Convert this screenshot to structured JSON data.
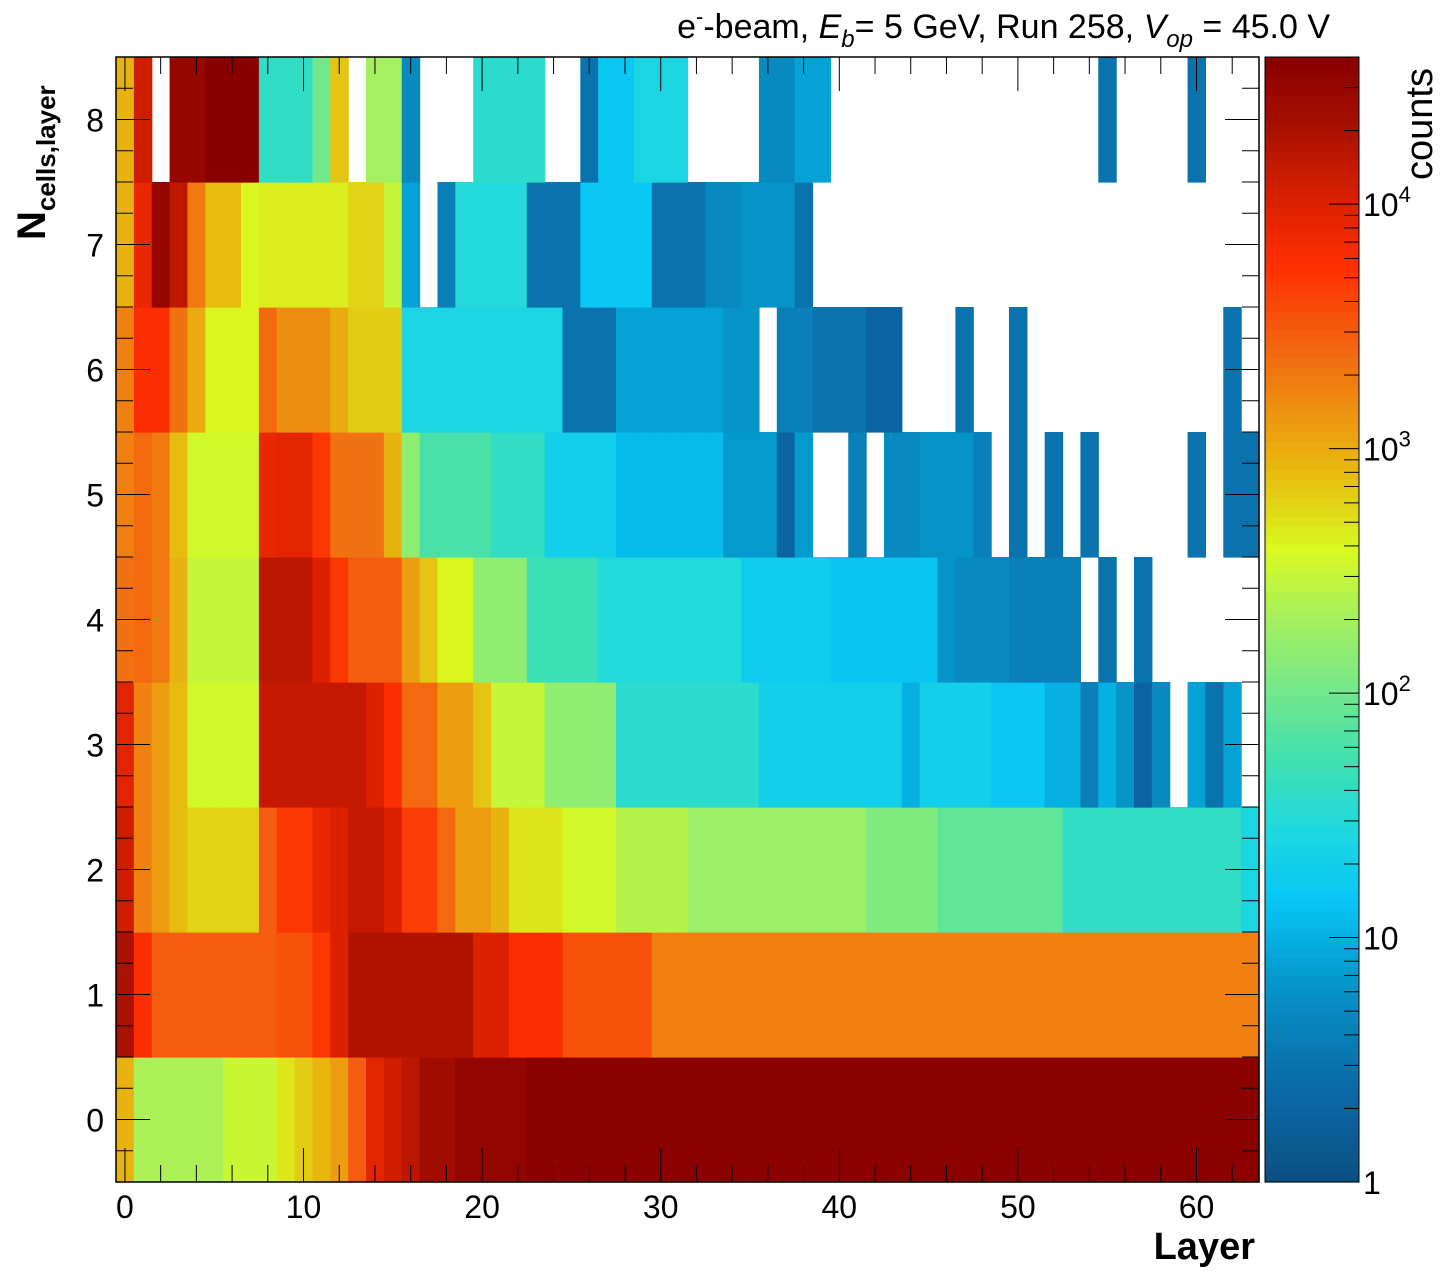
{
  "chart_data": {
    "type": "heatmap",
    "title": {
      "pre": "e",
      "sup": "-",
      "mid1": "-beam, ",
      "e_var": "E",
      "e_sub": "b",
      "mid2": "= 5 GeV, Run 258, ",
      "v_var": "V",
      "v_sub": "op",
      "post": " = 45.0 V"
    },
    "xlabel": "Layer",
    "ylabel": {
      "main": "N",
      "sub": "cells,layer"
    },
    "zlabel": "counts",
    "xlim": [
      -0.5,
      63.5
    ],
    "ylim": [
      -0.5,
      8.5
    ],
    "zlim": [
      1,
      40000
    ],
    "zscale": "log",
    "x_ticks": [
      "0",
      "10",
      "20",
      "30",
      "40",
      "50",
      "60"
    ],
    "y_ticks": [
      "0",
      "1",
      "2",
      "3",
      "4",
      "5",
      "6",
      "7",
      "8"
    ],
    "z_ticks": [
      {
        "base": "1",
        "exp": ""
      },
      {
        "base": "10",
        "exp": ""
      },
      {
        "base": "10",
        "exp": "2"
      },
      {
        "base": "10",
        "exp": "3"
      },
      {
        "base": "10",
        "exp": "4"
      }
    ],
    "palette": [
      "#0b4f80",
      "#0b63a0",
      "#0a7cb5",
      "#059cd0",
      "#08c6f5",
      "#1ed8e0",
      "#40e0b0",
      "#74e88a",
      "#a4f060",
      "#d8fa20",
      "#e6c010",
      "#ee9010",
      "#f36010",
      "#ff3000",
      "#d82000",
      "#a81000",
      "#880000"
    ],
    "rows": [
      {
        "n": 0,
        "segments": [
          [
            0,
            0,
            900
          ],
          [
            1,
            5,
            220
          ],
          [
            6,
            8,
            320
          ],
          [
            9,
            9,
            480
          ],
          [
            10,
            10,
            650
          ],
          [
            11,
            11,
            850
          ],
          [
            12,
            12,
            1200
          ],
          [
            13,
            13,
            3000
          ],
          [
            14,
            14,
            9000
          ],
          [
            15,
            15,
            12000
          ],
          [
            16,
            16,
            16000
          ],
          [
            17,
            18,
            24000
          ],
          [
            19,
            22,
            32000
          ],
          [
            23,
            63,
            38000
          ]
        ]
      },
      {
        "n": 1,
        "segments": [
          [
            0,
            0,
            20000
          ],
          [
            1,
            1,
            6000
          ],
          [
            2,
            8,
            3000
          ],
          [
            9,
            10,
            3500
          ],
          [
            11,
            11,
            5000
          ],
          [
            12,
            12,
            10000
          ],
          [
            13,
            19,
            18000
          ],
          [
            20,
            21,
            10000
          ],
          [
            22,
            24,
            6000
          ],
          [
            25,
            29,
            3500
          ],
          [
            30,
            63,
            1800
          ]
        ]
      },
      {
        "n": 2,
        "segments": [
          [
            0,
            0,
            12000
          ],
          [
            1,
            1,
            1800
          ],
          [
            2,
            2,
            1200
          ],
          [
            3,
            3,
            800
          ],
          [
            4,
            7,
            600
          ],
          [
            8,
            8,
            3000
          ],
          [
            9,
            10,
            5000
          ],
          [
            11,
            11,
            8000
          ],
          [
            12,
            12,
            10000
          ],
          [
            13,
            14,
            14000
          ],
          [
            15,
            15,
            10000
          ],
          [
            16,
            17,
            4500
          ],
          [
            18,
            18,
            2500
          ],
          [
            19,
            20,
            1200
          ],
          [
            21,
            21,
            900
          ],
          [
            22,
            24,
            500
          ],
          [
            25,
            27,
            350
          ],
          [
            28,
            31,
            250
          ],
          [
            32,
            41,
            180
          ],
          [
            42,
            45,
            120
          ],
          [
            46,
            52,
            80
          ],
          [
            53,
            62,
            40
          ],
          [
            63,
            63,
            25
          ]
        ]
      },
      {
        "n": 3,
        "segments": [
          [
            0,
            0,
            9000
          ],
          [
            1,
            1,
            1800
          ],
          [
            2,
            2,
            1200
          ],
          [
            3,
            3,
            800
          ],
          [
            4,
            7,
            350
          ],
          [
            8,
            13,
            14000
          ],
          [
            14,
            14,
            10000
          ],
          [
            15,
            15,
            6000
          ],
          [
            16,
            17,
            2500
          ],
          [
            18,
            19,
            1200
          ],
          [
            20,
            20,
            700
          ],
          [
            21,
            23,
            300
          ],
          [
            24,
            27,
            150
          ],
          [
            28,
            35,
            35
          ],
          [
            36,
            43,
            20
          ],
          [
            44,
            44,
            10
          ],
          [
            45,
            48,
            20
          ],
          [
            49,
            51,
            15
          ],
          [
            52,
            53,
            10
          ],
          [
            54,
            54,
            4
          ],
          [
            55,
            55,
            10
          ],
          [
            56,
            56,
            6
          ],
          [
            57,
            57,
            2
          ],
          [
            58,
            58,
            5
          ],
          [
            59,
            59,
            0
          ],
          [
            60,
            60,
            8
          ],
          [
            61,
            61,
            3
          ],
          [
            62,
            62,
            8
          ],
          [
            63,
            63,
            0
          ]
        ]
      },
      {
        "n": 4,
        "segments": [
          [
            0,
            0,
            2200
          ],
          [
            1,
            1,
            2500
          ],
          [
            2,
            2,
            2000
          ],
          [
            3,
            3,
            900
          ],
          [
            4,
            7,
            300
          ],
          [
            8,
            10,
            16000
          ],
          [
            11,
            11,
            10000
          ],
          [
            12,
            12,
            5000
          ],
          [
            13,
            15,
            3000
          ],
          [
            16,
            16,
            1200
          ],
          [
            17,
            17,
            700
          ],
          [
            18,
            19,
            400
          ],
          [
            20,
            22,
            150
          ],
          [
            23,
            26,
            50
          ],
          [
            27,
            34,
            30
          ],
          [
            35,
            39,
            18
          ],
          [
            40,
            45,
            14
          ],
          [
            46,
            46,
            6
          ],
          [
            47,
            49,
            5
          ],
          [
            50,
            53,
            4
          ],
          [
            54,
            54,
            0
          ],
          [
            55,
            55,
            3
          ],
          [
            56,
            56,
            0
          ],
          [
            57,
            57,
            3
          ],
          [
            58,
            63,
            0
          ]
        ]
      },
      {
        "n": 5,
        "segments": [
          [
            0,
            0,
            1800
          ],
          [
            1,
            1,
            2500
          ],
          [
            2,
            2,
            2000
          ],
          [
            3,
            3,
            800
          ],
          [
            4,
            7,
            350
          ],
          [
            8,
            8,
            8000
          ],
          [
            9,
            10,
            9000
          ],
          [
            11,
            11,
            5000
          ],
          [
            12,
            14,
            2200
          ],
          [
            15,
            15,
            900
          ],
          [
            16,
            16,
            150
          ],
          [
            17,
            20,
            60
          ],
          [
            21,
            23,
            40
          ],
          [
            24,
            27,
            20
          ],
          [
            28,
            33,
            12
          ],
          [
            34,
            36,
            7
          ],
          [
            37,
            37,
            2
          ],
          [
            38,
            38,
            7
          ],
          [
            39,
            40,
            0
          ],
          [
            41,
            41,
            4
          ],
          [
            42,
            42,
            0
          ],
          [
            43,
            44,
            5
          ],
          [
            45,
            47,
            6
          ],
          [
            48,
            48,
            4
          ],
          [
            49,
            49,
            0
          ],
          [
            50,
            50,
            3
          ],
          [
            51,
            51,
            0
          ],
          [
            52,
            52,
            3
          ],
          [
            53,
            53,
            0
          ],
          [
            54,
            54,
            3
          ],
          [
            55,
            59,
            0
          ],
          [
            60,
            60,
            3
          ],
          [
            61,
            61,
            0
          ],
          [
            62,
            63,
            3
          ]
        ]
      },
      {
        "n": 6,
        "segments": [
          [
            0,
            0,
            1800
          ],
          [
            1,
            1,
            6000
          ],
          [
            2,
            2,
            6000
          ],
          [
            3,
            3,
            2200
          ],
          [
            4,
            4,
            1000
          ],
          [
            5,
            7,
            400
          ],
          [
            8,
            8,
            2500
          ],
          [
            9,
            11,
            1500
          ],
          [
            12,
            12,
            1000
          ],
          [
            13,
            15,
            650
          ],
          [
            16,
            24,
            25
          ],
          [
            25,
            27,
            3
          ],
          [
            28,
            33,
            8
          ],
          [
            34,
            35,
            6
          ],
          [
            36,
            36,
            0
          ],
          [
            37,
            38,
            4
          ],
          [
            39,
            41,
            3
          ],
          [
            42,
            43,
            2
          ],
          [
            44,
            46,
            0
          ],
          [
            47,
            47,
            3
          ],
          [
            48,
            49,
            0
          ],
          [
            50,
            50,
            3
          ],
          [
            51,
            61,
            0
          ],
          [
            62,
            62,
            3
          ],
          [
            63,
            63,
            0
          ]
        ]
      },
      {
        "n": 7,
        "segments": [
          [
            0,
            0,
            900
          ],
          [
            1,
            1,
            8000
          ],
          [
            2,
            2,
            30000
          ],
          [
            3,
            3,
            15000
          ],
          [
            4,
            4,
            2000
          ],
          [
            5,
            6,
            800
          ],
          [
            7,
            7,
            400
          ],
          [
            8,
            12,
            450
          ],
          [
            13,
            14,
            600
          ],
          [
            15,
            15,
            300
          ],
          [
            16,
            16,
            8
          ],
          [
            17,
            17,
            0
          ],
          [
            18,
            18,
            4
          ],
          [
            19,
            22,
            30
          ],
          [
            23,
            25,
            3
          ],
          [
            26,
            29,
            15
          ],
          [
            30,
            32,
            3
          ],
          [
            33,
            34,
            5
          ],
          [
            35,
            37,
            6
          ],
          [
            38,
            38,
            3
          ],
          [
            39,
            63,
            0
          ]
        ]
      },
      {
        "n": 8,
        "segments": [
          [
            0,
            0,
            900
          ],
          [
            1,
            1,
            12000
          ],
          [
            2,
            2,
            0
          ],
          [
            3,
            3,
            30000
          ],
          [
            4,
            4,
            30000
          ],
          [
            5,
            7,
            40000
          ],
          [
            8,
            10,
            40
          ],
          [
            11,
            11,
            100
          ],
          [
            12,
            12,
            700
          ],
          [
            13,
            13,
            0
          ],
          [
            14,
            15,
            200
          ],
          [
            16,
            16,
            5
          ],
          [
            17,
            19,
            0
          ],
          [
            20,
            23,
            35
          ],
          [
            24,
            25,
            0
          ],
          [
            26,
            26,
            3
          ],
          [
            27,
            28,
            15
          ],
          [
            29,
            31,
            25
          ],
          [
            32,
            35,
            0
          ],
          [
            36,
            37,
            5
          ],
          [
            38,
            39,
            8
          ],
          [
            40,
            54,
            0
          ],
          [
            55,
            55,
            3
          ],
          [
            56,
            59,
            0
          ],
          [
            60,
            60,
            3
          ],
          [
            61,
            63,
            0
          ]
        ]
      }
    ]
  }
}
